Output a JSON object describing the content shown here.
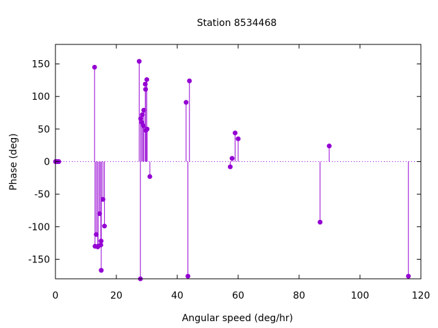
{
  "chart_data": {
    "type": "scatter",
    "style": "impulses",
    "title": "Station 8534468",
    "xlabel": "Angular speed (deg/hr)",
    "ylabel": "Phase (deg)",
    "xlim": [
      0,
      120
    ],
    "ylim": [
      -180,
      180
    ],
    "xticks": [
      0,
      20,
      40,
      60,
      80,
      100,
      120
    ],
    "yticks": [
      -150,
      -100,
      -50,
      0,
      50,
      100,
      150
    ],
    "zero_line": "dotted",
    "grid": false,
    "color": "#9400d3",
    "points": [
      {
        "x": 0.04,
        "y": 0
      },
      {
        "x": 0.08,
        "y": 0
      },
      {
        "x": 0.5,
        "y": 0
      },
      {
        "x": 0.54,
        "y": 0
      },
      {
        "x": 1.02,
        "y": 0
      },
      {
        "x": 1.1,
        "y": 0
      },
      {
        "x": 12.85,
        "y": 145
      },
      {
        "x": 13.0,
        "y": -130
      },
      {
        "x": 13.4,
        "y": -112
      },
      {
        "x": 13.9,
        "y": -131
      },
      {
        "x": 14.0,
        "y": -130
      },
      {
        "x": 14.5,
        "y": -80
      },
      {
        "x": 14.9,
        "y": -128
      },
      {
        "x": 15.0,
        "y": -122
      },
      {
        "x": 15.04,
        "y": -167
      },
      {
        "x": 15.6,
        "y": -58
      },
      {
        "x": 16.1,
        "y": -99
      },
      {
        "x": 27.5,
        "y": 154
      },
      {
        "x": 27.9,
        "y": -180
      },
      {
        "x": 28.0,
        "y": 66
      },
      {
        "x": 28.4,
        "y": 60
      },
      {
        "x": 28.5,
        "y": 72
      },
      {
        "x": 28.9,
        "y": 55
      },
      {
        "x": 29.0,
        "y": 79
      },
      {
        "x": 29.5,
        "y": 119
      },
      {
        "x": 29.6,
        "y": 111
      },
      {
        "x": 29.7,
        "y": 48
      },
      {
        "x": 30.0,
        "y": 126
      },
      {
        "x": 30.1,
        "y": 50
      },
      {
        "x": 31.0,
        "y": -23
      },
      {
        "x": 42.9,
        "y": 91
      },
      {
        "x": 43.5,
        "y": -176
      },
      {
        "x": 44.0,
        "y": 124
      },
      {
        "x": 57.4,
        "y": -8
      },
      {
        "x": 58.0,
        "y": 5
      },
      {
        "x": 59.0,
        "y": 44
      },
      {
        "x": 60.0,
        "y": 35
      },
      {
        "x": 86.9,
        "y": -93
      },
      {
        "x": 89.9,
        "y": 24
      },
      {
        "x": 115.9,
        "y": -176
      }
    ]
  }
}
